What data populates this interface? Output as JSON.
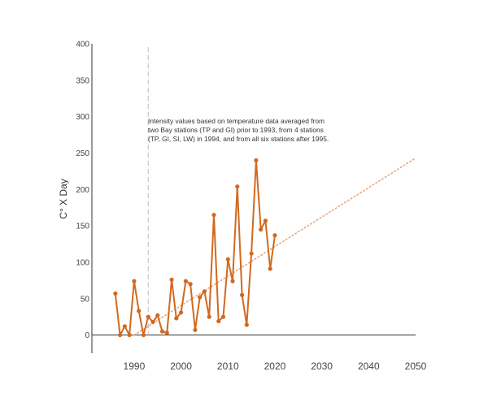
{
  "chart_data": {
    "type": "line",
    "title": "",
    "xlabel": "",
    "ylabel": "C° X Day",
    "xlim": [
      1981,
      2050
    ],
    "ylim": [
      -25,
      400
    ],
    "x_ticks": [
      1990,
      2000,
      2010,
      2020,
      2030,
      2040,
      2050
    ],
    "y_ticks": [
      0,
      50,
      100,
      150,
      200,
      250,
      300,
      350,
      400
    ],
    "grid": false,
    "series": [
      {
        "color": "#d2691e",
        "x": [
          1986,
          1987,
          1988,
          1989,
          1990,
          1991,
          1992,
          1993,
          1994,
          1995,
          1996,
          1997,
          1998,
          1999,
          2000,
          2001,
          2002,
          2003,
          2004,
          2005,
          2006,
          2007,
          2008,
          2009,
          2010,
          2011,
          2012,
          2013,
          2014,
          2015,
          2016,
          2017,
          2018,
          2019,
          2020
        ],
        "y": [
          57,
          0,
          12,
          0,
          74,
          33,
          0,
          25,
          18,
          27,
          5,
          3,
          76,
          23,
          31,
          74,
          70,
          7,
          52,
          60,
          25,
          165,
          19,
          25,
          104,
          74,
          204,
          55,
          14,
          112,
          240,
          145,
          157,
          91,
          137
        ]
      }
    ],
    "trendline": {
      "style": "dotted",
      "color": "#e8a070",
      "x": [
        1990,
        2050
      ],
      "y": [
        0,
        243
      ]
    },
    "reference_line": {
      "x": 1993,
      "style": "dashed",
      "color": "#bbbbbb"
    },
    "annotation": [
      "Intensity values based on  temperature data averaged from",
      "two Bay stations (TP and GI) prior to 1993, from 4 stations",
      " (TP, GI, SI, LW) in 1994, and from all six stations after 1995."
    ]
  }
}
